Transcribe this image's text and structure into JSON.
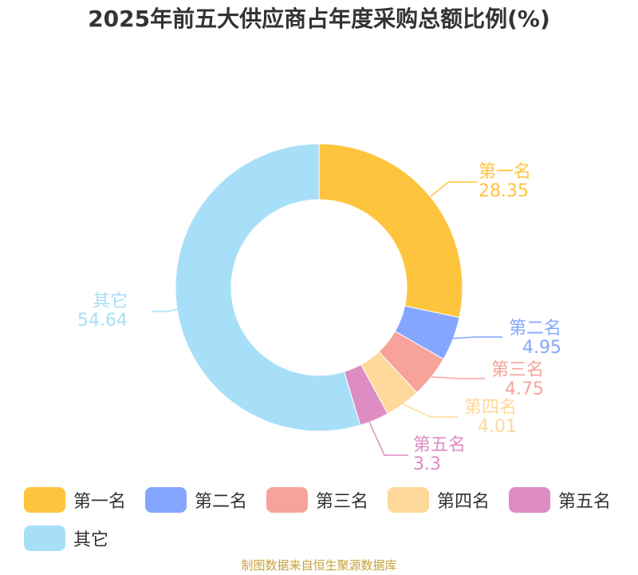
{
  "chart_data": {
    "type": "pie",
    "variant": "donut",
    "title": "2025年前五大供应商占年度采购总额比例(%)",
    "categories": [
      "第一名",
      "第二名",
      "第三名",
      "第四名",
      "第五名",
      "其它"
    ],
    "values": [
      28.35,
      4.95,
      4.75,
      4.01,
      3.3,
      54.64
    ],
    "value_labels": [
      "28.35",
      "4.95",
      "4.75",
      "4.01",
      "3.3",
      "54.64"
    ],
    "colors": [
      "#FFC43D",
      "#84A6FF",
      "#F7A29A",
      "#FFD99B",
      "#DD8CC4",
      "#A8DFF8"
    ],
    "legend": {
      "position": "bottom",
      "entries": [
        "第一名",
        "第二名",
        "第三名",
        "第四名",
        "第五名",
        "其它"
      ]
    }
  },
  "source": "制图数据来自恒生聚源数据库"
}
